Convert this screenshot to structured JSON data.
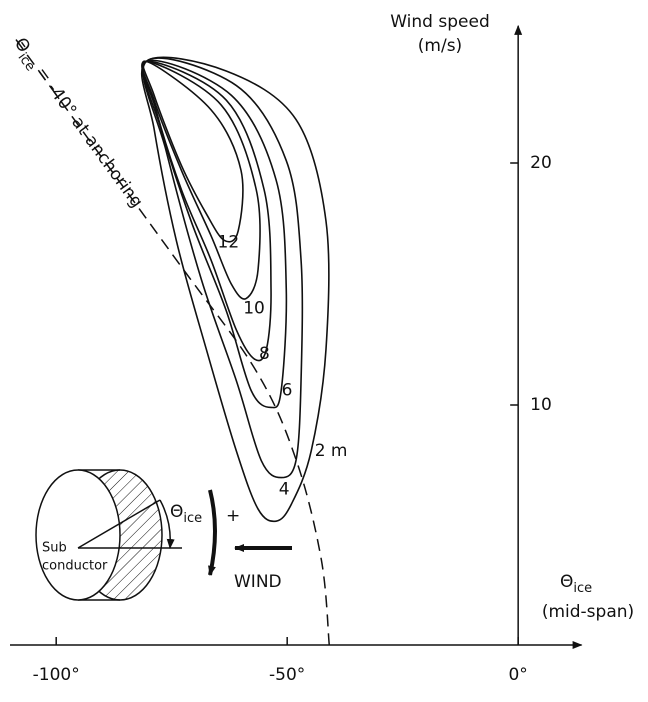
{
  "chart_data": {
    "type": "contour",
    "y_label_line1": "Wind speed",
    "y_label_line2": "(m/s)",
    "x_label_symbol": "Θ",
    "x_label_subscript": "ice",
    "x_label_note": "(mid-span)",
    "xlim": [
      -110,
      12
    ],
    "ylim": [
      0,
      25.5
    ],
    "xticks": [
      {
        "value": -100,
        "label": "-100°"
      },
      {
        "value": -50,
        "label": "-50°"
      },
      {
        "value": 0,
        "label": "0°"
      }
    ],
    "yticks": [
      10,
      20
    ],
    "reference_curve": {
      "label_symbol": "Θ",
      "label_subscript": "ice",
      "label_text": "= -40° at anchoring",
      "x": [
        -108.7,
        -74,
        -56.7,
        -48,
        -42.6,
        -40.9
      ],
      "values": [
        25.1,
        16,
        11.4,
        7.7,
        3.6,
        0.1
      ]
    },
    "contours": [
      {
        "level": 2,
        "value_label": "2 m",
        "x": [
          -80.5,
          -63.2,
          -48.1,
          -41.6,
          -41.6,
          -44.8,
          -49.1,
          -52.4,
          -56.3,
          -61.0,
          -67.5,
          -74.0,
          -78.8
        ],
        "values": [
          24.2,
          23.8,
          21.8,
          17.6,
          12.3,
          8.1,
          5.9,
          5.2,
          5.7,
          8.1,
          12.3,
          16.8,
          21.4
        ]
      },
      {
        "level": 4,
        "x": [
          -80.5,
          -61.0,
          -50.2,
          -47.0,
          -47.0,
          -48.1,
          -51.3,
          -55.6,
          -61.0,
          -68.6,
          -76.2
        ],
        "values": [
          24.2,
          23.2,
          20.1,
          16.0,
          11.0,
          7.7,
          7.0,
          7.7,
          11.0,
          15.2,
          20.5
        ]
      },
      {
        "level": 6,
        "x": [
          -80.5,
          -62.1,
          -52.4,
          -50.2,
          -51.3,
          -53.5,
          -57.8,
          -63.2,
          -70.8,
          -77.3
        ],
        "values": [
          24.2,
          22.8,
          19.3,
          14.8,
          10.6,
          9.9,
          10.6,
          13.9,
          17.6,
          21.4
        ]
      },
      {
        "level": 8,
        "x": [
          -80.5,
          -63.2,
          -55.0,
          -53.5,
          -54.5,
          -57.1,
          -61.0,
          -66.5,
          -72.9,
          -78.4
        ],
        "values": [
          24.2,
          22.6,
          18.9,
          14.8,
          12.3,
          11.9,
          13.1,
          16.0,
          18.9,
          22.2
        ]
      },
      {
        "level": 10,
        "x": [
          -80.5,
          -64.3,
          -56.7,
          -56.3,
          -58.9,
          -62.1,
          -66.5,
          -72.9,
          -78.8
        ],
        "values": [
          24.2,
          22.4,
          18.9,
          15.6,
          14.4,
          15.0,
          17.0,
          19.7,
          22.6
        ]
      },
      {
        "level": 12,
        "x": [
          -80.5,
          -66.5,
          -60.0,
          -60.6,
          -63.6,
          -67.5,
          -72.9,
          -78.8
        ],
        "values": [
          24.2,
          22.2,
          19.7,
          17.2,
          16.8,
          17.9,
          19.9,
          22.8
        ]
      }
    ],
    "inset": {
      "body_line1": "Sub",
      "body_line2": "conductor",
      "angle_symbol": "Θ",
      "angle_subscript": "ice",
      "sign": "+",
      "wind": "WIND"
    }
  }
}
